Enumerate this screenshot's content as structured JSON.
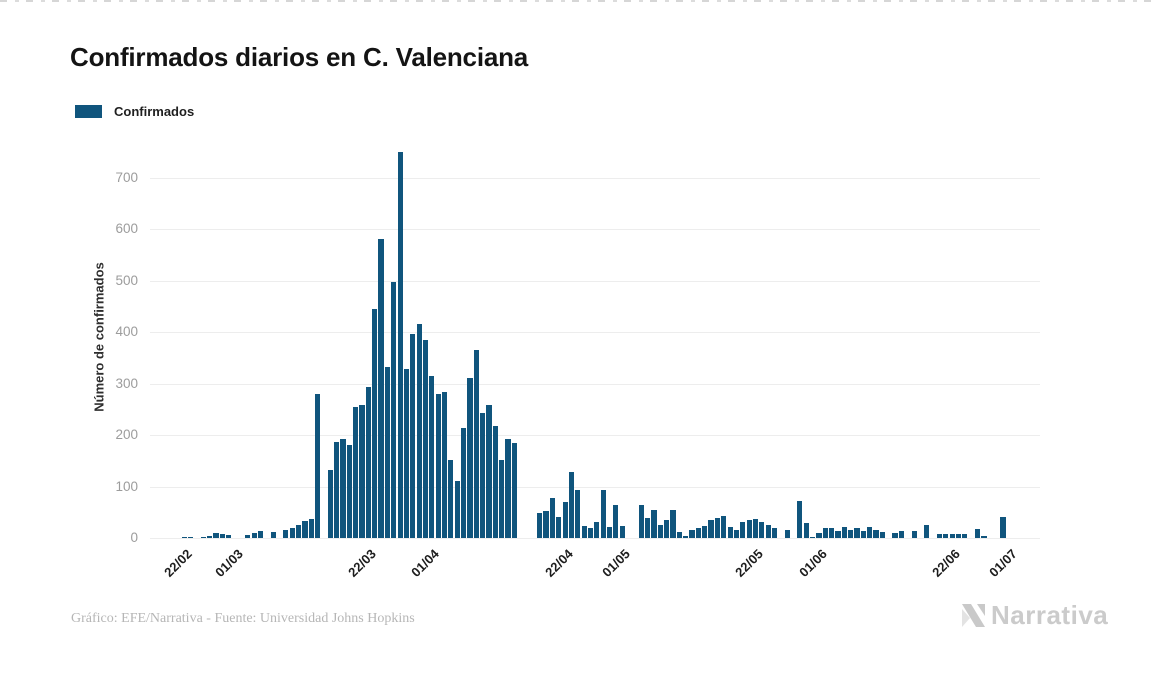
{
  "title": "Confirmados diarios en C. Valenciana",
  "legend": {
    "label": "Confirmados",
    "color": "#10557d"
  },
  "footer": {
    "credit": "Gráfico: EFE/Narrativa - Fuente: Universidad Johns Hopkins",
    "brand": "Narrativa"
  },
  "chart_data": {
    "type": "bar",
    "title": "Confirmados diarios en C. Valenciana",
    "xlabel": "",
    "ylabel": "Número de confirmados",
    "ylim": [
      0,
      750
    ],
    "yticks": [
      0,
      100,
      200,
      300,
      400,
      500,
      600,
      700
    ],
    "grid": true,
    "legend_position": "top-left",
    "bar_color": "#10557d",
    "x_ticks": [
      {
        "index": 0,
        "label": "22/02"
      },
      {
        "index": 8,
        "label": "01/03"
      },
      {
        "index": 29,
        "label": "22/03"
      },
      {
        "index": 39,
        "label": "01/04"
      },
      {
        "index": 60,
        "label": "22/04"
      },
      {
        "index": 69,
        "label": "01/05"
      },
      {
        "index": 90,
        "label": "22/05"
      },
      {
        "index": 100,
        "label": "01/06"
      },
      {
        "index": 121,
        "label": "22/06"
      },
      {
        "index": 130,
        "label": "01/07"
      }
    ],
    "dates": [
      "22/02",
      "23/02",
      "24/02",
      "25/02",
      "26/02",
      "27/02",
      "28/02",
      "29/02",
      "01/03",
      "02/03",
      "03/03",
      "04/03",
      "05/03",
      "06/03",
      "07/03",
      "08/03",
      "09/03",
      "10/03",
      "11/03",
      "12/03",
      "13/03",
      "14/03",
      "15/03",
      "16/03",
      "17/03",
      "18/03",
      "19/03",
      "20/03",
      "21/03",
      "22/03",
      "23/03",
      "24/03",
      "25/03",
      "26/03",
      "27/03",
      "28/03",
      "29/03",
      "30/03",
      "31/03",
      "01/04",
      "02/04",
      "03/04",
      "04/04",
      "05/04",
      "06/04",
      "07/04",
      "08/04",
      "09/04",
      "10/04",
      "11/04",
      "12/04",
      "13/04",
      "14/04",
      "15/04",
      "16/04",
      "17/04",
      "18/04",
      "19/04",
      "20/04",
      "21/04",
      "22/04",
      "23/04",
      "24/04",
      "25/04",
      "26/04",
      "27/04",
      "28/04",
      "29/04",
      "30/04",
      "01/05",
      "02/05",
      "03/05",
      "04/05",
      "05/05",
      "06/05",
      "07/05",
      "08/05",
      "09/05",
      "10/05",
      "11/05",
      "12/05",
      "13/05",
      "14/05",
      "15/05",
      "16/05",
      "17/05",
      "18/05",
      "19/05",
      "20/05",
      "21/05",
      "22/05",
      "23/05",
      "24/05",
      "25/05",
      "26/05",
      "27/05",
      "28/05",
      "29/05",
      "30/05",
      "31/05",
      "01/06",
      "02/06",
      "03/06",
      "04/06",
      "05/06",
      "06/06",
      "07/06",
      "08/06",
      "09/06",
      "10/06",
      "11/06",
      "12/06",
      "13/06",
      "14/06",
      "15/06",
      "16/06",
      "17/06",
      "18/06",
      "19/06",
      "20/06",
      "21/06",
      "22/06",
      "23/06",
      "24/06",
      "25/06",
      "26/06",
      "27/06",
      "28/06",
      "29/06",
      "30/06",
      "01/07"
    ],
    "values": [
      0,
      1,
      1,
      0,
      2,
      3,
      9,
      7,
      6,
      0,
      0,
      5,
      9,
      14,
      0,
      11,
      0,
      16,
      20,
      25,
      33,
      37,
      280,
      0,
      132,
      187,
      193,
      180,
      255,
      258,
      293,
      445,
      580,
      332,
      497,
      750,
      329,
      396,
      415,
      384,
      314,
      280,
      283,
      152,
      110,
      214,
      310,
      366,
      243,
      259,
      217,
      152,
      192,
      184,
      0,
      0,
      0,
      48,
      52,
      77,
      41,
      70,
      129,
      93,
      23,
      20,
      32,
      94,
      22,
      64,
      24,
      0,
      0,
      65,
      39,
      55,
      26,
      35,
      54,
      12,
      4,
      16,
      19,
      24,
      35,
      39,
      42,
      22,
      16,
      32,
      35,
      37,
      32,
      26,
      19,
      0,
      16,
      0,
      71,
      29,
      2,
      10,
      19,
      19,
      14,
      22,
      16,
      19,
      14,
      21,
      16,
      12,
      0,
      10,
      14,
      0,
      14,
      0,
      25,
      0,
      8,
      8,
      8,
      8,
      8,
      0,
      17,
      3,
      0,
      0,
      40
    ]
  }
}
